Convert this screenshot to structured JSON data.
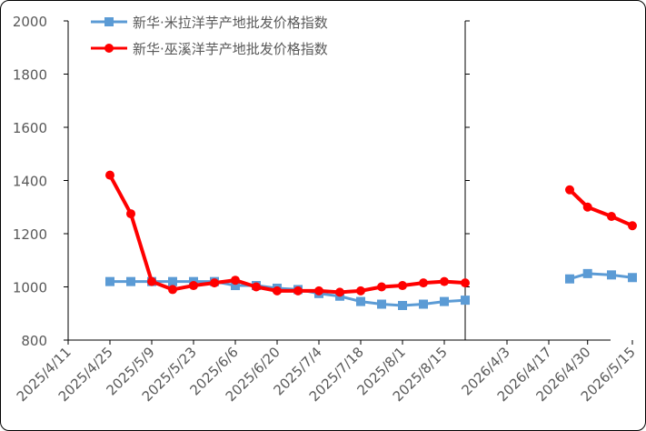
{
  "chart_data": {
    "type": "line",
    "title": "",
    "xlabel": "",
    "ylabel": "",
    "ylim": [
      800,
      2000
    ],
    "y_ticks": [
      800,
      1000,
      1200,
      1400,
      1600,
      1800,
      2000
    ],
    "x_tick_labels": [
      "2025/4/11",
      "2025/4/25",
      "2025/5/9",
      "2025/5/23",
      "2025/6/6",
      "2025/6/20",
      "2025/7/4",
      "2025/7/18",
      "2025/8/1",
      "2025/8/15",
      "2026/4/3",
      "2026/4/17",
      "2026/4/30",
      "2026/5/15"
    ],
    "grid": false,
    "legend_position": "top-left",
    "series": [
      {
        "name": "新华·米拉洋芋产地批发价格指数",
        "color": "#5B9BD5",
        "marker": "square",
        "segments": [
          {
            "x": [
              "2025/4/25",
              "2025/5/2",
              "2025/5/9",
              "2025/5/16",
              "2025/5/23",
              "2025/5/30",
              "2025/6/6",
              "2025/6/13",
              "2025/6/20",
              "2025/6/27",
              "2025/7/4",
              "2025/7/11",
              "2025/7/18",
              "2025/7/25",
              "2025/8/1",
              "2025/8/8",
              "2025/8/15",
              "2025/8/22"
            ],
            "values": [
              1020,
              1020,
              1020,
              1020,
              1020,
              1020,
              1005,
              1005,
              995,
              990,
              975,
              965,
              945,
              935,
              930,
              935,
              945,
              950
            ]
          },
          {
            "x": [
              "2026/4/24",
              "2026/4/30",
              "2026/5/8",
              "2026/5/15"
            ],
            "values": [
              1030,
              1050,
              1045,
              1035
            ]
          }
        ]
      },
      {
        "name": "新华·巫溪洋芋产地批发价格指数",
        "color": "#FF0000",
        "marker": "circle",
        "segments": [
          {
            "x": [
              "2025/4/25",
              "2025/5/2",
              "2025/5/9",
              "2025/5/16",
              "2025/5/23",
              "2025/5/30",
              "2025/6/6",
              "2025/6/13",
              "2025/6/20",
              "2025/6/27",
              "2025/7/4",
              "2025/7/11",
              "2025/7/18",
              "2025/7/25",
              "2025/8/1",
              "2025/8/8",
              "2025/8/15",
              "2025/8/22"
            ],
            "values": [
              1420,
              1275,
              1020,
              990,
              1005,
              1015,
              1025,
              1000,
              985,
              985,
              985,
              980,
              985,
              1000,
              1005,
              1015,
              1020,
              1015
            ]
          },
          {
            "x": [
              "2026/4/24",
              "2026/4/30",
              "2026/5/8",
              "2026/5/15"
            ],
            "values": [
              1365,
              1300,
              1265,
              1230
            ]
          }
        ]
      }
    ]
  }
}
